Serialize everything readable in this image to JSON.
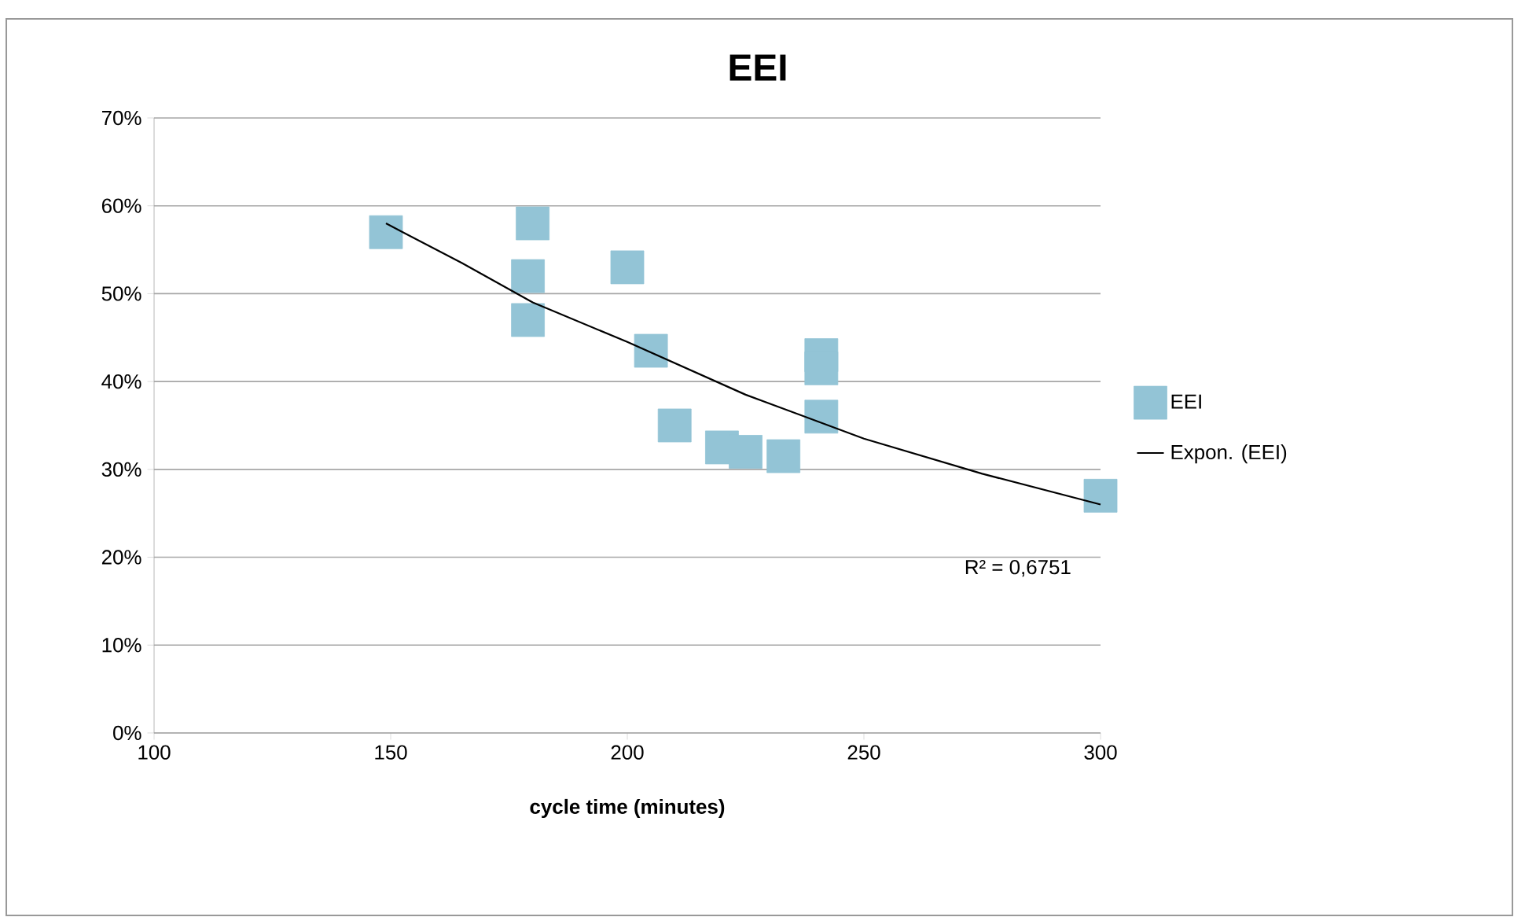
{
  "chart_data": {
    "type": "scatter",
    "title": "EEI",
    "xlabel": "cycle time (minutes)",
    "xlim": [
      100,
      300
    ],
    "xticks": [
      100,
      150,
      200,
      250,
      300
    ],
    "ylim": [
      0,
      70
    ],
    "yticks": [
      {
        "value": 0,
        "label": "0%"
      },
      {
        "value": 10,
        "label": "10%"
      },
      {
        "value": 20,
        "label": "20%"
      },
      {
        "value": 30,
        "label": "30%"
      },
      {
        "value": 40,
        "label": "40%"
      },
      {
        "value": 50,
        "label": "50%"
      },
      {
        "value": 60,
        "label": "60%"
      },
      {
        "value": 70,
        "label": "70%"
      }
    ],
    "grid": "y",
    "legend": "right",
    "annotations": [
      "R² = 0,6751"
    ],
    "series": [
      {
        "name": "EEI",
        "marker": "square",
        "color": "#93c4d6",
        "x": [
          149,
          180,
          179,
          179,
          200,
          205,
          210,
          220,
          225,
          233,
          241,
          241,
          241,
          300
        ],
        "values": [
          57,
          58,
          52,
          47,
          53,
          43.5,
          35,
          32.5,
          32,
          31.5,
          43,
          41.5,
          36,
          27
        ]
      },
      {
        "name": "Expon. (EEI)",
        "type": "line",
        "marker": "none",
        "color": "#000000",
        "x": [
          149,
          165,
          180,
          200,
          225,
          250,
          275,
          300
        ],
        "values": [
          58,
          53.5,
          49,
          44.5,
          38.5,
          33.5,
          29.5,
          26
        ]
      }
    ]
  }
}
